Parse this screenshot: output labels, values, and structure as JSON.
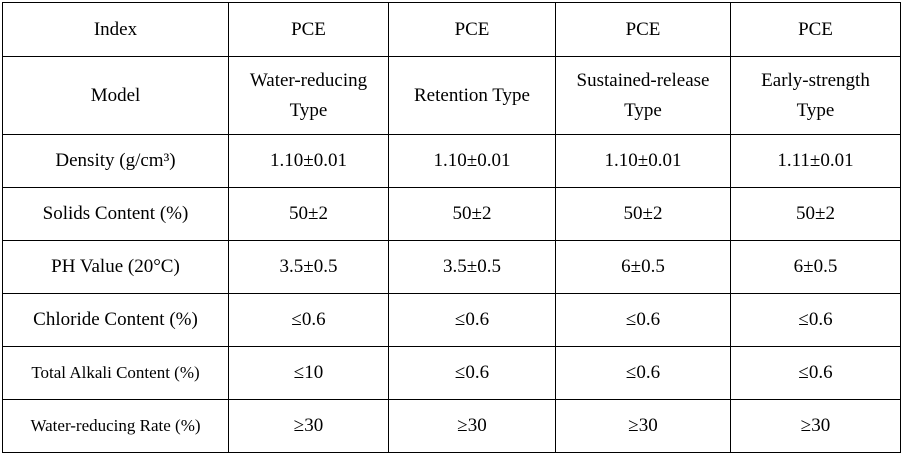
{
  "header": {
    "label": "Index",
    "values": [
      "PCE",
      "PCE",
      "PCE",
      "PCE"
    ]
  },
  "model": {
    "label": "Model",
    "values": [
      [
        "Water-reducing",
        "Type"
      ],
      [
        "Retention Type"
      ],
      [
        "Sustained-release",
        "Type"
      ],
      [
        "Early-strength",
        "Type"
      ]
    ]
  },
  "rows": [
    {
      "label": "Density (g/cm³)",
      "values": [
        "1.10±0.01",
        "1.10±0.01",
        "1.10±0.01",
        "1.11±0.01"
      ]
    },
    {
      "label": "Solids Content (%)",
      "values": [
        "50±2",
        "50±2",
        "50±2",
        "50±2"
      ]
    },
    {
      "label": "PH Value (20°C)",
      "values": [
        "3.5±0.5",
        "3.5±0.5",
        "6±0.5",
        "6±0.5"
      ]
    },
    {
      "label": "Chloride Content (%)",
      "values": [
        "≤0.6",
        "≤0.6",
        "≤0.6",
        "≤0.6"
      ]
    },
    {
      "label": "Total Alkali Content (%)",
      "values": [
        "≤10",
        "≤0.6",
        "≤0.6",
        "≤0.6"
      ]
    },
    {
      "label": "Water-reducing Rate (%)",
      "values": [
        "≥30",
        "≥30",
        "≥30",
        "≥30"
      ]
    }
  ]
}
